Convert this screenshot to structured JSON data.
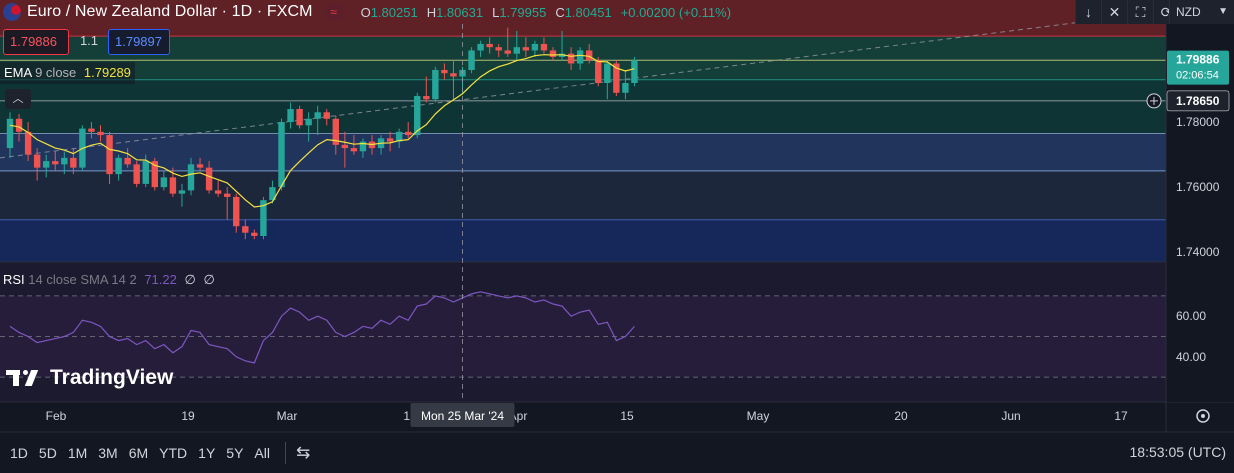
{
  "header": {
    "title": "Euro / New Zealand Dollar · 1D · FXCM",
    "ecircle": "≈",
    "ohlc": {
      "o_label": "O",
      "o": "1.80251",
      "h_label": "H",
      "h": "1.80631",
      "l_label": "L",
      "l": "1.79955",
      "c_label": "C",
      "c": "1.80451",
      "change": "+0.00200 (+0.11%)"
    }
  },
  "trade": {
    "bid": "1.79886",
    "spread": "1.1",
    "ask": "1.79897"
  },
  "ema": {
    "name": "EMA",
    "params": "9 close",
    "value": "1.79289"
  },
  "rsi": {
    "name": "RSI",
    "params": "14 close SMA 14 2",
    "value": "71.22",
    "nan1": "∅",
    "nan2": "∅"
  },
  "price_axis": {
    "ticks": [
      "1.78000",
      "1.76000",
      "1.74000"
    ],
    "last_price": "1.79886",
    "countdown": "02:06:54",
    "crosshair_price": "1.78650",
    "rsi_ticks": [
      "60.00",
      "40.00"
    ]
  },
  "time_axis": {
    "labels": [
      "Feb",
      "19",
      "Mar",
      "18",
      "Apr",
      "15",
      "May",
      "20",
      "Jun",
      "17"
    ],
    "crosshair_label": "Mon 25 Mar '24"
  },
  "currency": "NZD",
  "logo_text": "TradingView",
  "bottom": {
    "timeframes": [
      "1D",
      "5D",
      "1M",
      "3M",
      "6M",
      "YTD",
      "1Y",
      "5Y",
      "All"
    ],
    "clock": "18:53:05 (UTC)"
  },
  "colors": {
    "up": "#26a69a",
    "down": "#ef5350",
    "ema": "#f4e23e",
    "rsi": "#7e57c2",
    "zone_red": "#6d2227",
    "zone_green": "#15463d",
    "zone_teal": "#0e3a3a",
    "zone_blue": "#243a66",
    "zone_navy": "#172c63"
  },
  "candles": [
    {
      "o": 1.772,
      "h": 1.783,
      "l": 1.769,
      "c": 1.781
    },
    {
      "o": 1.781,
      "h": 1.7825,
      "l": 1.774,
      "c": 1.777
    },
    {
      "o": 1.777,
      "h": 1.78,
      "l": 1.768,
      "c": 1.77
    },
    {
      "o": 1.77,
      "h": 1.772,
      "l": 1.762,
      "c": 1.766
    },
    {
      "o": 1.766,
      "h": 1.77,
      "l": 1.763,
      "c": 1.768
    },
    {
      "o": 1.768,
      "h": 1.771,
      "l": 1.765,
      "c": 1.767
    },
    {
      "o": 1.767,
      "h": 1.771,
      "l": 1.764,
      "c": 1.769
    },
    {
      "o": 1.769,
      "h": 1.772,
      "l": 1.764,
      "c": 1.766
    },
    {
      "o": 1.766,
      "h": 1.779,
      "l": 1.765,
      "c": 1.778
    },
    {
      "o": 1.778,
      "h": 1.78,
      "l": 1.775,
      "c": 1.777
    },
    {
      "o": 1.777,
      "h": 1.779,
      "l": 1.774,
      "c": 1.776
    },
    {
      "o": 1.776,
      "h": 1.777,
      "l": 1.761,
      "c": 1.764
    },
    {
      "o": 1.764,
      "h": 1.77,
      "l": 1.762,
      "c": 1.769
    },
    {
      "o": 1.769,
      "h": 1.772,
      "l": 1.766,
      "c": 1.767
    },
    {
      "o": 1.767,
      "h": 1.768,
      "l": 1.76,
      "c": 1.761
    },
    {
      "o": 1.761,
      "h": 1.77,
      "l": 1.76,
      "c": 1.768
    },
    {
      "o": 1.768,
      "h": 1.769,
      "l": 1.759,
      "c": 1.76
    },
    {
      "o": 1.76,
      "h": 1.765,
      "l": 1.759,
      "c": 1.763
    },
    {
      "o": 1.763,
      "h": 1.766,
      "l": 1.757,
      "c": 1.758
    },
    {
      "o": 1.758,
      "h": 1.761,
      "l": 1.754,
      "c": 1.759
    },
    {
      "o": 1.759,
      "h": 1.769,
      "l": 1.7575,
      "c": 1.767
    },
    {
      "o": 1.767,
      "h": 1.769,
      "l": 1.765,
      "c": 1.766
    },
    {
      "o": 1.766,
      "h": 1.768,
      "l": 1.758,
      "c": 1.759
    },
    {
      "o": 1.759,
      "h": 1.762,
      "l": 1.757,
      "c": 1.758
    },
    {
      "o": 1.758,
      "h": 1.76,
      "l": 1.75,
      "c": 1.757
    },
    {
      "o": 1.757,
      "h": 1.758,
      "l": 1.746,
      "c": 1.748
    },
    {
      "o": 1.748,
      "h": 1.75,
      "l": 1.744,
      "c": 1.746
    },
    {
      "o": 1.746,
      "h": 1.747,
      "l": 1.744,
      "c": 1.745
    },
    {
      "o": 1.745,
      "h": 1.757,
      "l": 1.744,
      "c": 1.756
    },
    {
      "o": 1.756,
      "h": 1.762,
      "l": 1.755,
      "c": 1.76
    },
    {
      "o": 1.76,
      "h": 1.781,
      "l": 1.759,
      "c": 1.78
    },
    {
      "o": 1.78,
      "h": 1.786,
      "l": 1.778,
      "c": 1.784
    },
    {
      "o": 1.784,
      "h": 1.785,
      "l": 1.778,
      "c": 1.779
    },
    {
      "o": 1.779,
      "h": 1.783,
      "l": 1.774,
      "c": 1.781
    },
    {
      "o": 1.781,
      "h": 1.785,
      "l": 1.776,
      "c": 1.783
    },
    {
      "o": 1.783,
      "h": 1.784,
      "l": 1.779,
      "c": 1.781
    },
    {
      "o": 1.781,
      "h": 1.782,
      "l": 1.77,
      "c": 1.773
    },
    {
      "o": 1.773,
      "h": 1.777,
      "l": 1.766,
      "c": 1.772
    },
    {
      "o": 1.772,
      "h": 1.776,
      "l": 1.77,
      "c": 1.771
    },
    {
      "o": 1.771,
      "h": 1.775,
      "l": 1.769,
      "c": 1.774
    },
    {
      "o": 1.774,
      "h": 1.776,
      "l": 1.77,
      "c": 1.772
    },
    {
      "o": 1.772,
      "h": 1.776,
      "l": 1.77,
      "c": 1.775
    },
    {
      "o": 1.775,
      "h": 1.777,
      "l": 1.771,
      "c": 1.774
    },
    {
      "o": 1.774,
      "h": 1.778,
      "l": 1.772,
      "c": 1.777
    },
    {
      "o": 1.777,
      "h": 1.78,
      "l": 1.775,
      "c": 1.776
    },
    {
      "o": 1.776,
      "h": 1.789,
      "l": 1.775,
      "c": 1.788
    },
    {
      "o": 1.788,
      "h": 1.794,
      "l": 1.786,
      "c": 1.787
    },
    {
      "o": 1.787,
      "h": 1.797,
      "l": 1.786,
      "c": 1.796
    },
    {
      "o": 1.796,
      "h": 1.798,
      "l": 1.793,
      "c": 1.795
    },
    {
      "o": 1.795,
      "h": 1.799,
      "l": 1.787,
      "c": 1.794
    },
    {
      "o": 1.794,
      "h": 1.797,
      "l": 1.789,
      "c": 1.796
    },
    {
      "o": 1.796,
      "h": 1.803,
      "l": 1.795,
      "c": 1.802
    },
    {
      "o": 1.802,
      "h": 1.805,
      "l": 1.8,
      "c": 1.804
    },
    {
      "o": 1.804,
      "h": 1.806,
      "l": 1.801,
      "c": 1.803
    },
    {
      "o": 1.803,
      "h": 1.804,
      "l": 1.8,
      "c": 1.802
    },
    {
      "o": 1.802,
      "h": 1.809,
      "l": 1.8,
      "c": 1.801
    },
    {
      "o": 1.801,
      "h": 1.808,
      "l": 1.799,
      "c": 1.803
    },
    {
      "o": 1.803,
      "h": 1.806,
      "l": 1.8,
      "c": 1.802
    },
    {
      "o": 1.802,
      "h": 1.805,
      "l": 1.8,
      "c": 1.804
    },
    {
      "o": 1.804,
      "h": 1.806,
      "l": 1.801,
      "c": 1.802
    },
    {
      "o": 1.802,
      "h": 1.803,
      "l": 1.799,
      "c": 1.8
    },
    {
      "o": 1.8,
      "h": 1.808,
      "l": 1.799,
      "c": 1.801
    },
    {
      "o": 1.801,
      "h": 1.803,
      "l": 1.796,
      "c": 1.798
    },
    {
      "o": 1.798,
      "h": 1.803,
      "l": 1.796,
      "c": 1.802
    },
    {
      "o": 1.802,
      "h": 1.804,
      "l": 1.798,
      "c": 1.799
    },
    {
      "o": 1.799,
      "h": 1.8,
      "l": 1.791,
      "c": 1.792
    },
    {
      "o": 1.792,
      "h": 1.799,
      "l": 1.787,
      "c": 1.798
    },
    {
      "o": 1.798,
      "h": 1.799,
      "l": 1.788,
      "c": 1.789
    },
    {
      "o": 1.789,
      "h": 1.796,
      "l": 1.787,
      "c": 1.792
    },
    {
      "o": 1.792,
      "h": 1.8,
      "l": 1.791,
      "c": 1.799
    }
  ],
  "ema_values": [
    1.779,
    1.7785,
    1.7768,
    1.7746,
    1.7733,
    1.772,
    1.7714,
    1.7703,
    1.7719,
    1.7729,
    1.7735,
    1.7716,
    1.7711,
    1.7703,
    1.7684,
    1.7683,
    1.7667,
    1.7659,
    1.7643,
    1.7633,
    1.764,
    1.7644,
    1.7633,
    1.7623,
    1.7613,
    1.7587,
    1.7561,
    1.7539,
    1.7543,
    1.7555,
    1.7604,
    1.7651,
    1.7679,
    1.7705,
    1.773,
    1.7746,
    1.7743,
    1.7738,
    1.7732,
    1.7734,
    1.7731,
    1.7735,
    1.7736,
    1.7743,
    1.7746,
    1.7773,
    1.7792,
    1.7825,
    1.785,
    1.7868,
    1.7887,
    1.7914,
    1.7939,
    1.7957,
    1.797,
    1.7978,
    1.7989,
    1.7995,
    1.8004,
    1.8007,
    1.8006,
    1.8007,
    1.8002,
    1.8005,
    1.8002,
    1.7986,
    1.7985,
    1.7966,
    1.7957,
    1.7964
  ],
  "rsi_values": [
    55,
    52,
    50,
    47,
    48,
    49,
    50,
    52,
    58,
    57,
    55,
    50,
    48,
    49,
    46,
    48,
    44,
    46,
    42,
    45,
    53,
    52,
    46,
    45,
    44,
    40,
    38,
    37,
    48,
    52,
    60,
    64,
    62,
    58,
    60,
    58,
    52,
    50,
    52,
    55,
    54,
    58,
    56,
    60,
    58,
    65,
    66,
    70,
    69,
    67,
    69,
    71,
    72,
    71,
    70,
    69,
    70,
    69,
    67,
    68,
    66,
    65,
    60,
    62,
    63,
    56,
    57,
    48,
    50,
    55
  ]
}
